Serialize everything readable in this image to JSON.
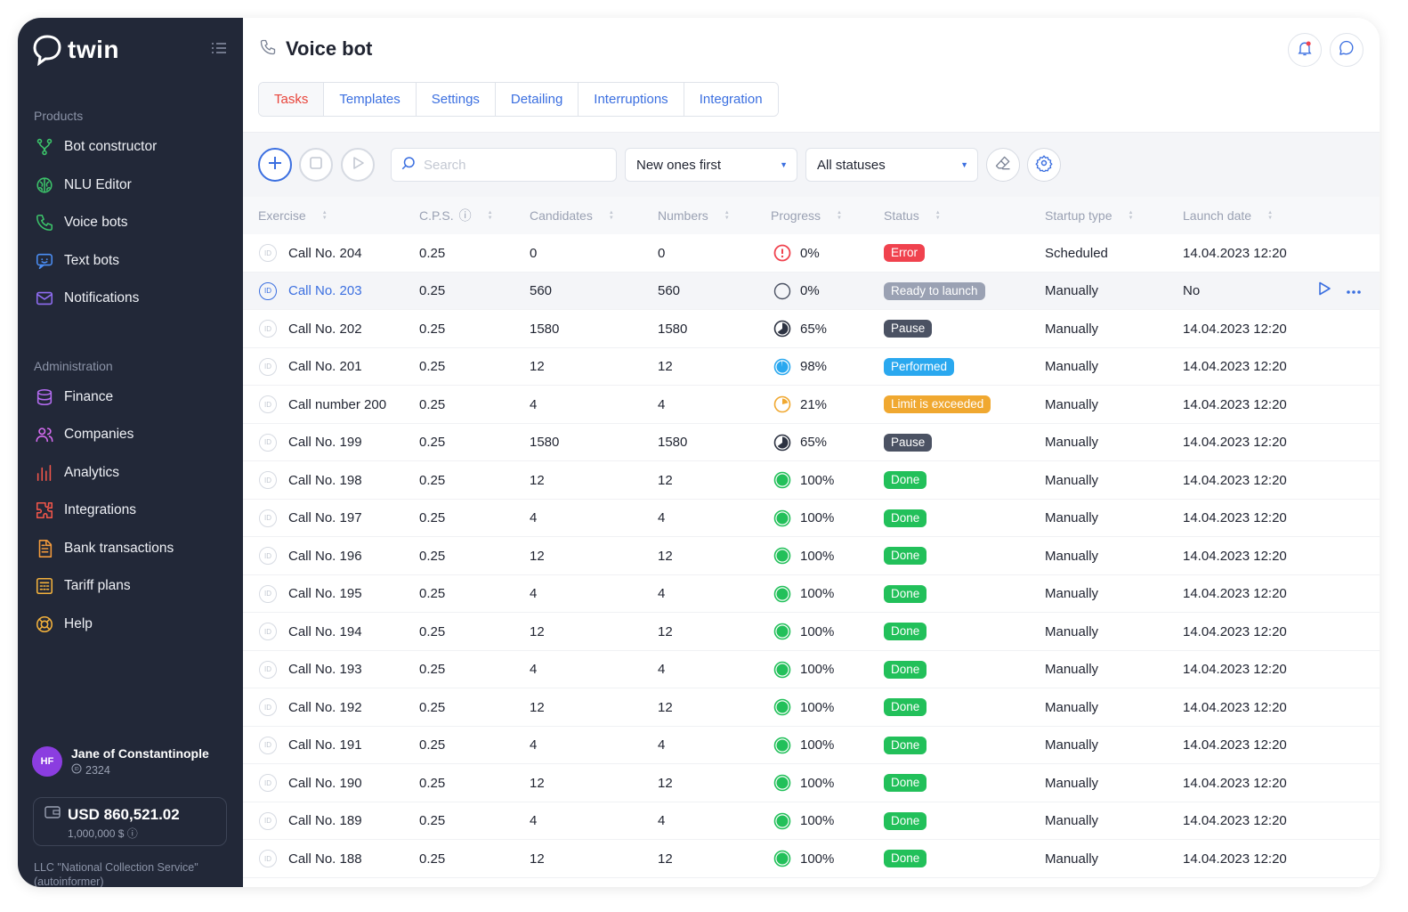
{
  "app": {
    "logo_text": "twin"
  },
  "sidebar": {
    "products_title": "Products",
    "products": [
      {
        "label": "Bot constructor",
        "icon": "branch-icon",
        "color": "#3cc36a"
      },
      {
        "label": "NLU Editor",
        "icon": "brain-icon",
        "color": "#3cc36a"
      },
      {
        "label": "Voice bots",
        "icon": "phone-icon",
        "color": "#3cc36a"
      },
      {
        "label": "Text bots",
        "icon": "chat-bot-icon",
        "color": "#4b8ef5"
      },
      {
        "label": "Notifications",
        "icon": "mail-icon",
        "color": "#8f6cf2"
      }
    ],
    "admin_title": "Administration",
    "admin": [
      {
        "label": "Finance",
        "icon": "database-icon",
        "color": "#b56cf2"
      },
      {
        "label": "Companies",
        "icon": "users-icon",
        "color": "#d66cf2"
      },
      {
        "label": "Analytics",
        "icon": "bar-chart-icon",
        "color": "#f2564a"
      },
      {
        "label": "Integrations",
        "icon": "puzzle-icon",
        "color": "#f2564a"
      },
      {
        "label": "Bank transactions",
        "icon": "document-icon",
        "color": "#f29a3c"
      },
      {
        "label": "Tariff plans",
        "icon": "calculator-icon",
        "color": "#f2b13c"
      },
      {
        "label": "Help",
        "icon": "lifebuoy-icon",
        "color": "#f2b13c"
      }
    ],
    "profile": {
      "initials": "HF",
      "name": "Jane of Constantinople",
      "id": "2324"
    },
    "balance": {
      "amount": "USD 860,521.02",
      "limit": "1,000,000 $"
    },
    "company": "LLC \"National Collection Service\" (autoinformer)"
  },
  "header": {
    "title": "Voice bot",
    "tabs": [
      "Tasks",
      "Templates",
      "Settings",
      "Detailing",
      "Interruptions",
      "Integration"
    ],
    "active_tab": "Tasks"
  },
  "toolbar": {
    "search_placeholder": "Search",
    "sort_value": "New ones first",
    "status_value": "All statuses"
  },
  "table": {
    "columns": [
      "Exercise",
      "C.P.S.",
      "Candidates",
      "Numbers",
      "Progress",
      "Status",
      "Startup type",
      "Launch date"
    ],
    "id_badge": "ID",
    "rows": [
      {
        "name": "Call No. 204",
        "cps": "0.25",
        "candidates": "0",
        "numbers": "0",
        "progress": "0%",
        "progress_value": 0,
        "progress_kind": "error",
        "status": "Error",
        "status_color": "#f0424e",
        "startup": "Scheduled",
        "date": "14.04.2023 12:20"
      },
      {
        "name": "Call No. 203",
        "cps": "0.25",
        "candidates": "560",
        "numbers": "560",
        "progress": "0%",
        "progress_value": 0,
        "progress_kind": "empty",
        "status": "Ready to launch",
        "status_color": "#9aa1b3",
        "startup": "Manually",
        "date": "No",
        "highlighted": true
      },
      {
        "name": "Call No. 202",
        "cps": "0.25",
        "candidates": "1580",
        "numbers": "1580",
        "progress": "65%",
        "progress_value": 0.65,
        "progress_kind": "pause",
        "status": "Pause",
        "status_color": "#4b5263",
        "startup": "Manually",
        "date": "14.04.2023 12:20"
      },
      {
        "name": "Call No. 201",
        "cps": "0.25",
        "candidates": "12",
        "numbers": "12",
        "progress": "98%",
        "progress_value": 0.98,
        "progress_kind": "performed",
        "status": "Performed",
        "status_color": "#2aa8ef",
        "startup": "Manually",
        "date": "14.04.2023 12:20"
      },
      {
        "name": "Call number 200",
        "cps": "0.25",
        "candidates": "4",
        "numbers": "4",
        "progress": "21%",
        "progress_value": 0.21,
        "progress_kind": "limit",
        "status": "Limit is exceeded",
        "status_color": "#f0a830",
        "startup": "Manually",
        "date": "14.04.2023 12:20"
      },
      {
        "name": "Call No. 199",
        "cps": "0.25",
        "candidates": "1580",
        "numbers": "1580",
        "progress": "65%",
        "progress_value": 0.65,
        "progress_kind": "pause",
        "status": "Pause",
        "status_color": "#4b5263",
        "startup": "Manually",
        "date": "14.04.2023 12:20"
      },
      {
        "name": "Call No. 198",
        "cps": "0.25",
        "candidates": "12",
        "numbers": "12",
        "progress": "100%",
        "progress_value": 1,
        "progress_kind": "done",
        "status": "Done",
        "status_color": "#22c05a",
        "startup": "Manually",
        "date": "14.04.2023 12:20"
      },
      {
        "name": "Call No. 197",
        "cps": "0.25",
        "candidates": "4",
        "numbers": "4",
        "progress": "100%",
        "progress_value": 1,
        "progress_kind": "done",
        "status": "Done",
        "status_color": "#22c05a",
        "startup": "Manually",
        "date": "14.04.2023 12:20"
      },
      {
        "name": "Call No. 196",
        "cps": "0.25",
        "candidates": "12",
        "numbers": "12",
        "progress": "100%",
        "progress_value": 1,
        "progress_kind": "done",
        "status": "Done",
        "status_color": "#22c05a",
        "startup": "Manually",
        "date": "14.04.2023 12:20"
      },
      {
        "name": "Call No. 195",
        "cps": "0.25",
        "candidates": "4",
        "numbers": "4",
        "progress": "100%",
        "progress_value": 1,
        "progress_kind": "done",
        "status": "Done",
        "status_color": "#22c05a",
        "startup": "Manually",
        "date": "14.04.2023 12:20"
      },
      {
        "name": "Call No. 194",
        "cps": "0.25",
        "candidates": "12",
        "numbers": "12",
        "progress": "100%",
        "progress_value": 1,
        "progress_kind": "done",
        "status": "Done",
        "status_color": "#22c05a",
        "startup": "Manually",
        "date": "14.04.2023 12:20"
      },
      {
        "name": "Call No. 193",
        "cps": "0.25",
        "candidates": "4",
        "numbers": "4",
        "progress": "100%",
        "progress_value": 1,
        "progress_kind": "done",
        "status": "Done",
        "status_color": "#22c05a",
        "startup": "Manually",
        "date": "14.04.2023 12:20"
      },
      {
        "name": "Call No. 192",
        "cps": "0.25",
        "candidates": "12",
        "numbers": "12",
        "progress": "100%",
        "progress_value": 1,
        "progress_kind": "done",
        "status": "Done",
        "status_color": "#22c05a",
        "startup": "Manually",
        "date": "14.04.2023 12:20"
      },
      {
        "name": "Call No. 191",
        "cps": "0.25",
        "candidates": "4",
        "numbers": "4",
        "progress": "100%",
        "progress_value": 1,
        "progress_kind": "done",
        "status": "Done",
        "status_color": "#22c05a",
        "startup": "Manually",
        "date": "14.04.2023 12:20"
      },
      {
        "name": "Call No. 190",
        "cps": "0.25",
        "candidates": "12",
        "numbers": "12",
        "progress": "100%",
        "progress_value": 1,
        "progress_kind": "done",
        "status": "Done",
        "status_color": "#22c05a",
        "startup": "Manually",
        "date": "14.04.2023 12:20"
      },
      {
        "name": "Call No. 189",
        "cps": "0.25",
        "candidates": "4",
        "numbers": "4",
        "progress": "100%",
        "progress_value": 1,
        "progress_kind": "done",
        "status": "Done",
        "status_color": "#22c05a",
        "startup": "Manually",
        "date": "14.04.2023 12:20"
      },
      {
        "name": "Call No. 188",
        "cps": "0.25",
        "candidates": "12",
        "numbers": "12",
        "progress": "100%",
        "progress_value": 1,
        "progress_kind": "done",
        "status": "Done",
        "status_color": "#22c05a",
        "startup": "Manually",
        "date": "14.04.2023 12:20"
      }
    ]
  },
  "colors": {
    "accent": "#3b6fe0",
    "active_tab": "#e8443a",
    "sidebar_bg": "#222838"
  }
}
